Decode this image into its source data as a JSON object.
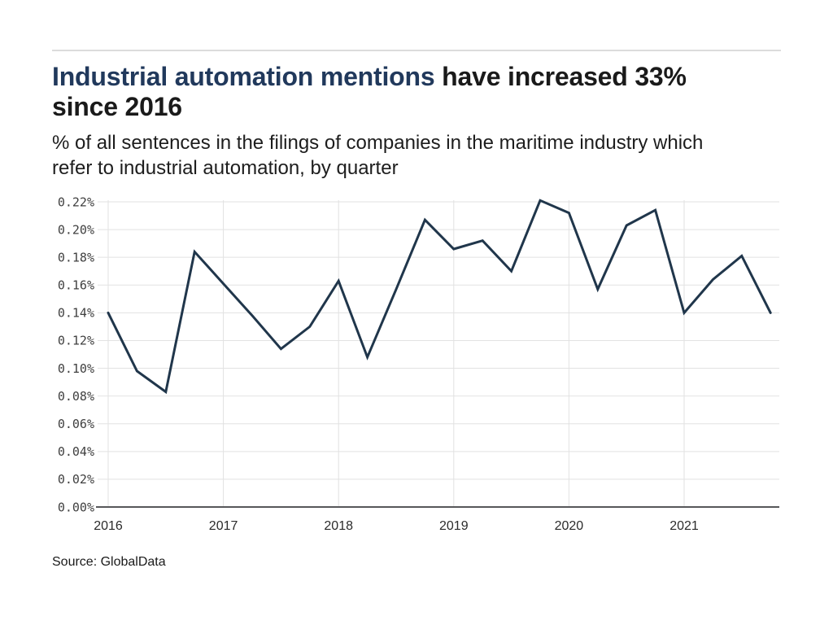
{
  "header": {
    "title": {
      "accent": "Industrial automation mentions",
      "rest": " have increased 33%",
      "line2": "since 2016"
    },
    "subtitle": {
      "line1": "% of all sentences in the filings of companies in the maritime industry which",
      "line2": "refer to industrial automation, by quarter"
    }
  },
  "chart_data": {
    "type": "line",
    "title": "Industrial automation mentions have increased 33% since 2016",
    "subtitle": "% of all sentences in the filings of companies in the maritime industry which refer to industrial automation, by quarter",
    "categories": [
      "2016 Q1",
      "2016 Q2",
      "2016 Q3",
      "2016 Q4",
      "2017 Q1",
      "2017 Q2",
      "2017 Q3",
      "2017 Q4",
      "2018 Q1",
      "2018 Q2",
      "2018 Q3",
      "2018 Q4",
      "2019 Q1",
      "2019 Q2",
      "2019 Q3",
      "2019 Q4",
      "2020 Q1",
      "2020 Q2",
      "2020 Q3",
      "2020 Q4",
      "2021 Q1",
      "2021 Q2",
      "2021 Q3",
      "2021 Q4"
    ],
    "series": [
      {
        "name": "% of sentences referring to industrial automation",
        "values": [
          0.14,
          0.098,
          0.083,
          0.184,
          0.161,
          0.138,
          0.114,
          0.13,
          0.163,
          0.108,
          0.157,
          0.207,
          0.186,
          0.192,
          0.17,
          0.221,
          0.212,
          0.157,
          0.203,
          0.214,
          0.14,
          0.164,
          0.181,
          0.14
        ]
      }
    ],
    "unit": "%",
    "ylim": [
      0,
      0.22
    ],
    "y_tick_values": [
      0.0,
      0.02,
      0.04,
      0.06,
      0.08,
      0.1,
      0.12,
      0.14,
      0.16,
      0.18,
      0.2,
      0.22
    ],
    "y_tick_labels": [
      "0.00%",
      "0.02%",
      "0.04%",
      "0.06%",
      "0.08%",
      "0.10%",
      "0.12%",
      "0.14%",
      "0.16%",
      "0.18%",
      "0.20%",
      "0.22%"
    ],
    "x_tick_labels": [
      "2016",
      "2017",
      "2018",
      "2019",
      "2020",
      "2021"
    ],
    "grid": true,
    "legend_position": "none",
    "colors": {
      "line": "#20364b",
      "grid": "#e2e2e2",
      "axis": "#57585a",
      "y_tick_label": "#3f3f3f",
      "x_tick_label": "#2b2b2b"
    }
  },
  "source": {
    "label": "Source: GlobalData"
  }
}
